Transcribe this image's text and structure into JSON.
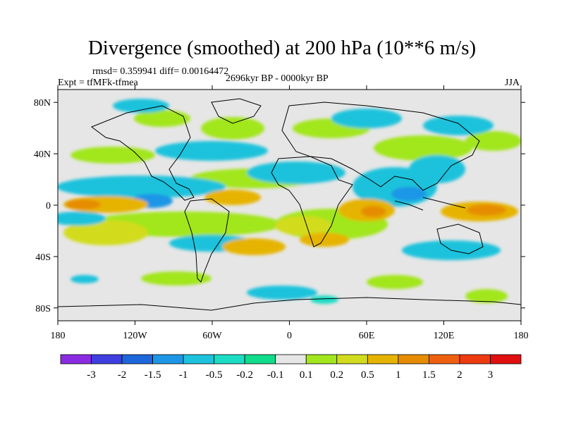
{
  "title": "Divergence (smoothed) at 200 hPa (10**6 m/s)",
  "stats": "rmsd= 0.359941 diff= 0.00164472",
  "experiment": "Expt = tfMFk-tfmea",
  "period": "2696kyr BP - 0000kyr BP",
  "season": "JJA",
  "axes": {
    "lat_ticks": [
      "80N",
      "40N",
      "0",
      "40S",
      "80S"
    ],
    "lon_ticks": [
      "180",
      "120W",
      "60W",
      "0",
      "60E",
      "120E",
      "180"
    ]
  },
  "colorbar": {
    "labels": [
      "-3",
      "-2",
      "-1.5",
      "-1",
      "-0.5",
      "-0.2",
      "-0.1",
      "0.1",
      "0.2",
      "0.5",
      "1",
      "1.5",
      "2",
      "3"
    ],
    "colors": [
      "#8a2be2",
      "#3f3fe0",
      "#1e66dc",
      "#1e96e6",
      "#1ec2dc",
      "#1cdcc4",
      "#10dc8c",
      "#e6e6e6",
      "#a2e61e",
      "#d2dc1e",
      "#e6b400",
      "#e68c00",
      "#ee6010",
      "#ee3a10",
      "#e01010"
    ]
  }
}
